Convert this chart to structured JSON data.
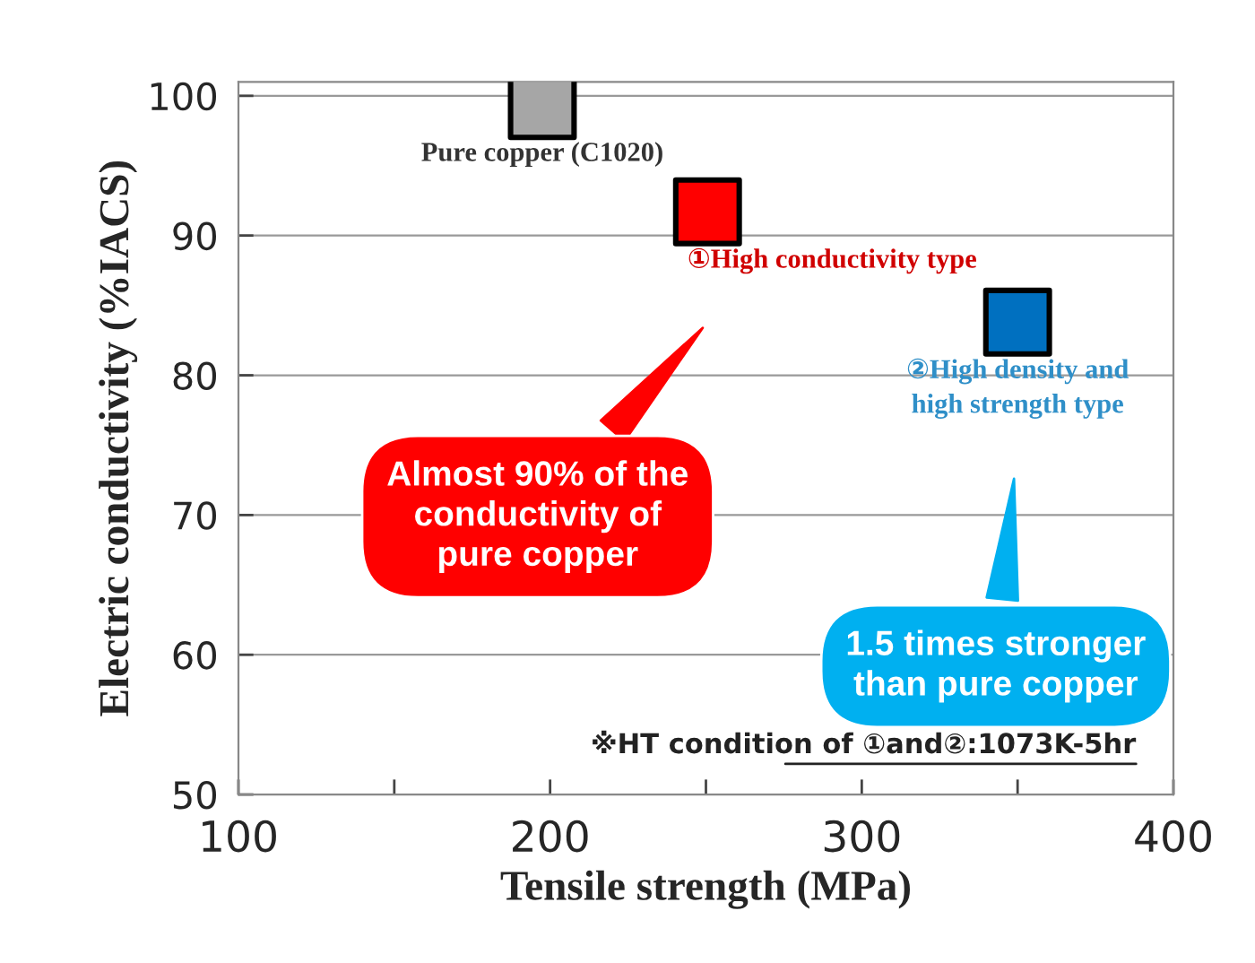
{
  "chart_data": {
    "type": "scatter",
    "xlabel": "Tensile strength (MPa)",
    "ylabel": "Electric conductivity (%IACS)",
    "xlim": [
      100,
      400
    ],
    "xticks": [
      100,
      {
        "value": 150,
        "label": null
      },
      200,
      {
        "value": 250,
        "label": null
      },
      300,
      {
        "value": 350,
        "label": null
      },
      400
    ],
    "ylim": [
      50,
      101
    ],
    "yticks": [
      50,
      60,
      70,
      80,
      90,
      100
    ],
    "grid": "y",
    "marker": "square",
    "series": [
      {
        "name": "Pure copper (C1020)",
        "color": "#a6a6a6",
        "x": [
          197.5
        ],
        "values": [
          99.3
        ]
      },
      {
        "name": "①High conductivity type",
        "color": "#ff0000",
        "x": [
          250.5
        ],
        "values": [
          91.7
        ]
      },
      {
        "name": "②High density and\nhigh strength type",
        "color": "#0070c0",
        "x": [
          350
        ],
        "values": [
          83.8
        ]
      }
    ],
    "annotations": [
      "Almost 90% of the\nconductivity of\npure copper",
      "1.5 times stronger\nthan pure copper",
      "※HT condition of ①and②:1073K-5hr"
    ]
  }
}
